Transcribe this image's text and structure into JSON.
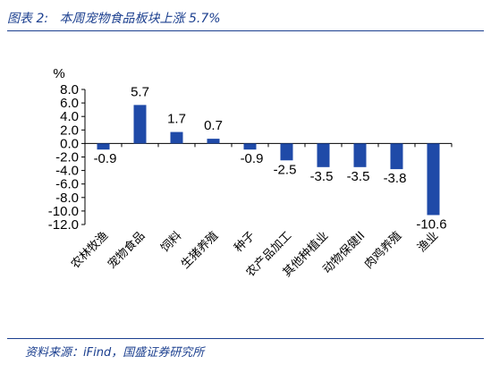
{
  "header": {
    "figure_no": "图表 2:",
    "title": "本周宠物食品板块上涨 5.7%"
  },
  "source": "资料来源：iFind，国盛证券研究所",
  "colors": {
    "bar": "#1f4aa8",
    "text": "#1b3f8f"
  },
  "chart_data": {
    "type": "bar",
    "title": "本周宠物食品板块上涨 5.7%",
    "ylabel": "%",
    "categories": [
      "农林牧渔",
      "宠物食品",
      "饲料",
      "生猪养殖",
      "种子",
      "农产品加工",
      "其他种植业",
      "动物保健II",
      "肉鸡养殖",
      "渔业"
    ],
    "values": [
      -0.9,
      5.7,
      1.7,
      0.7,
      -0.9,
      -2.5,
      -3.5,
      -3.5,
      -3.8,
      -10.6
    ],
    "data_labels": [
      "-0.9",
      "5.7",
      "1.7",
      "0.7",
      "-0.9",
      "-2.5",
      "-3.5",
      "-3.5",
      "-3.8",
      "-10.6"
    ],
    "ylim": [
      -12,
      8
    ],
    "yticks": [
      8,
      6,
      4,
      2,
      0,
      -2,
      -4,
      -6,
      -8,
      -10,
      -12
    ],
    "ytick_labels": [
      "8.0",
      "6.0",
      "4.0",
      "2.0",
      "0.0",
      "-2.0",
      "-4.0",
      "-6.0",
      "-8.0",
      "-10.0",
      "-12.0"
    ],
    "grid": false,
    "legend": "none"
  }
}
